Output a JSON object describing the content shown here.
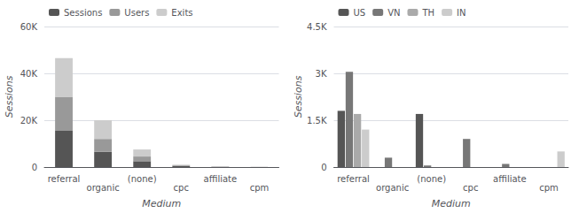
{
  "chart_data": [
    {
      "type": "bar",
      "stacked": true,
      "grid": true,
      "legend": "upper left",
      "xlabel": "Medium",
      "ylabel": "Sessions",
      "categories": [
        "referral",
        "organic",
        "(none)",
        "cpc",
        "affiliate",
        "cpm"
      ],
      "series": [
        {
          "name": "Sessions",
          "color": "#555555",
          "values": [
            15500,
            6500,
            2500,
            400,
            100,
            30
          ]
        },
        {
          "name": "Users",
          "color": "#999999",
          "values": [
            14500,
            5500,
            2000,
            300,
            80,
            20
          ]
        },
        {
          "name": "Exits",
          "color": "#cccccc",
          "values": [
            16500,
            8000,
            3000,
            300,
            100,
            20
          ]
        }
      ],
      "ylim": [
        0,
        60000
      ],
      "yticks": [
        0,
        {
          "value": 20000,
          "label": "20K"
        },
        {
          "value": 40000,
          "label": "40K"
        },
        {
          "value": 60000,
          "label": "60K"
        }
      ]
    },
    {
      "type": "bar",
      "stacked": false,
      "grid": true,
      "legend": "upper left",
      "xlabel": "Medium",
      "ylabel": "Sessions",
      "categories": [
        "referral",
        "organic",
        "(none)",
        "cpc",
        "affiliate",
        "cpm"
      ],
      "series": [
        {
          "name": "US",
          "color": "#555555",
          "values": [
            1800,
            0,
            1700,
            0,
            0,
            0
          ]
        },
        {
          "name": "VN",
          "color": "#777777",
          "values": [
            3050,
            300,
            50,
            900,
            100,
            0
          ]
        },
        {
          "name": "TH",
          "color": "#aaaaaa",
          "values": [
            1700,
            0,
            0,
            0,
            0,
            0
          ]
        },
        {
          "name": "IN",
          "color": "#cccccc",
          "values": [
            1200,
            0,
            0,
            0,
            0,
            500
          ]
        }
      ],
      "ylim": [
        0,
        4500
      ],
      "yticks": [
        0,
        {
          "value": 1500,
          "label": "1.5K"
        },
        {
          "value": 3000,
          "label": "3K"
        },
        {
          "value": 4500,
          "label": "4.5K"
        }
      ]
    }
  ]
}
